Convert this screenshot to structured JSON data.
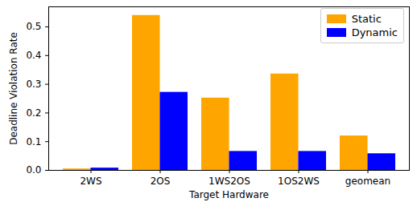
{
  "chart_data": {
    "type": "bar",
    "categories": [
      "2WS",
      "2OS",
      "1WS2OS",
      "1OS2WS",
      "geomean"
    ],
    "series": [
      {
        "name": "Static",
        "color": "#ffa500",
        "values": [
          0.005,
          0.54,
          0.252,
          0.336,
          0.12
        ]
      },
      {
        "name": "Dynamic",
        "color": "#0000ff",
        "values": [
          0.008,
          0.272,
          0.066,
          0.066,
          0.058
        ]
      }
    ],
    "x_label": "Target Hardware",
    "y_label": "Deadline Violation Rate",
    "ylim": [
      0,
      0.57
    ],
    "yticks": [
      {
        "value": 0,
        "label": "0.0"
      },
      0.1,
      0.2,
      0.3,
      0.4,
      0.5
    ],
    "legend": "upper right",
    "grid": false
  }
}
